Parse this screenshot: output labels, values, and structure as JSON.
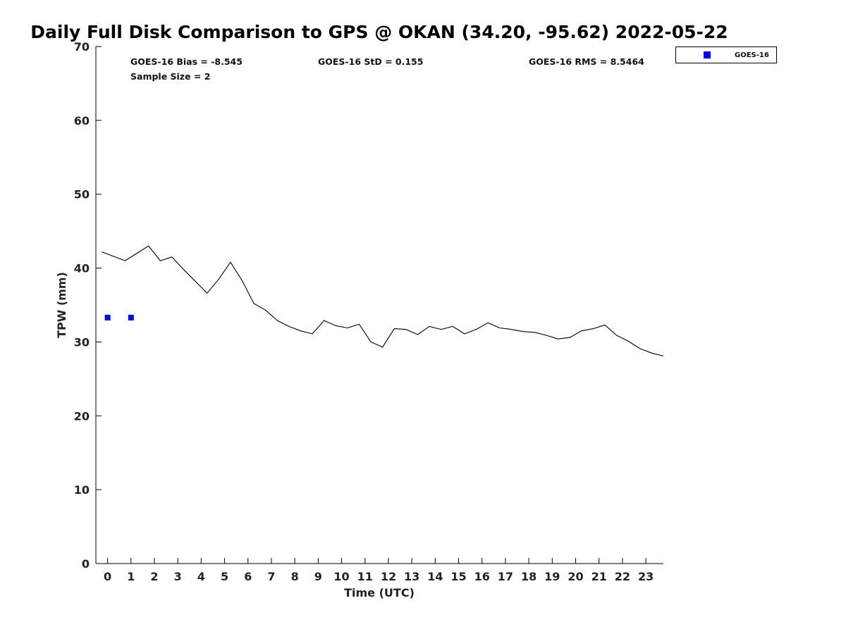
{
  "chart_data": {
    "type": "line",
    "title": "Daily Full Disk Comparison to GPS @ OKAN (34.20, -95.62) 2022-05-22",
    "xlabel": "Time (UTC)",
    "ylabel": "TPW (mm)",
    "xlim": [
      -0.5,
      23.75
    ],
    "ylim": [
      0,
      70
    ],
    "x_ticks": [
      0,
      1,
      2,
      3,
      4,
      5,
      6,
      7,
      8,
      9,
      10,
      11,
      12,
      13,
      14,
      15,
      16,
      17,
      18,
      19,
      20,
      21,
      22,
      23
    ],
    "y_ticks": [
      0,
      10,
      20,
      30,
      40,
      50,
      60,
      70
    ],
    "grid": false,
    "legend_position": "top-right",
    "stats": [
      "GOES-16 Bias = -8.545",
      "GOES-16 StD = 0.155",
      "GOES-16 RMS = 8.5464",
      "Sample Size = 2"
    ],
    "series": [
      {
        "style": "line",
        "color": "#000000",
        "x": [
          -0.25,
          0.75,
          1.75,
          2.25,
          2.75,
          3.25,
          3.75,
          4.25,
          4.75,
          5.25,
          5.75,
          6.25,
          6.75,
          7.25,
          7.75,
          8.25,
          8.75,
          9.25,
          9.75,
          10.25,
          10.75,
          11.25,
          11.75,
          12.25,
          12.75,
          13.25,
          13.75,
          14.25,
          14.75,
          15.25,
          15.75,
          16.25,
          16.75,
          17.25,
          17.75,
          18.25,
          18.75,
          19.25,
          19.75,
          20.25,
          20.75,
          21.25,
          21.75,
          22.25,
          22.75,
          23.25,
          23.75
        ],
        "values": [
          42.2,
          41.0,
          43.0,
          41.0,
          41.5,
          39.8,
          38.2,
          36.6,
          38.5,
          40.8,
          38.3,
          35.2,
          34.3,
          32.9,
          32.1,
          31.5,
          31.1,
          32.9,
          32.2,
          31.9,
          32.4,
          30.0,
          29.3,
          31.8,
          31.7,
          31.0,
          32.1,
          31.7,
          32.1,
          31.1,
          31.7,
          32.6,
          31.9,
          31.7,
          31.4,
          31.3,
          30.9,
          30.4,
          30.6,
          31.5,
          31.8,
          32.3,
          30.9,
          30.1,
          29.1,
          28.5,
          28.1
        ]
      },
      {
        "name": "GOES-16",
        "style": "marker",
        "color": "#0000ff",
        "x": [
          0,
          1
        ],
        "values": [
          33.3,
          33.3
        ]
      }
    ]
  }
}
